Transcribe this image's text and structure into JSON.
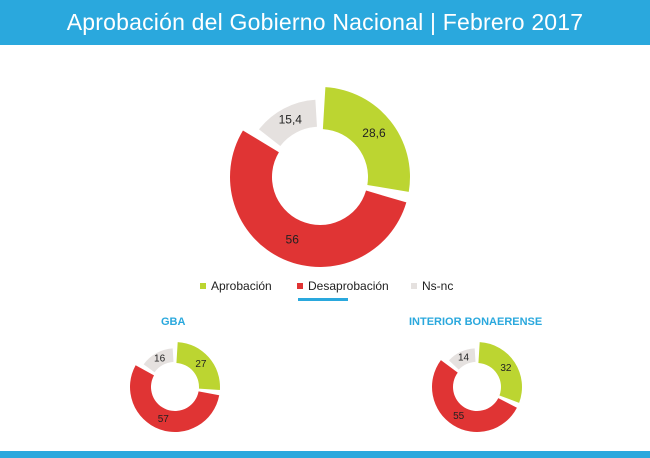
{
  "header": {
    "title": "Aprobación del Gobierno Nacional | Febrero 2017"
  },
  "colors": {
    "header": "#2aa8dd",
    "aprobacion": "#bcd531",
    "desaprobacion": "#e03434",
    "nsnc": "#e5e1df"
  },
  "legend": [
    {
      "label": "Aprobación",
      "color": "#bcd531"
    },
    {
      "label": "Desaprobación",
      "color": "#e03434"
    },
    {
      "label": "Ns-nc",
      "color": "#e5e1df"
    }
  ],
  "chart_data": [
    {
      "type": "pie",
      "title": "",
      "categories": [
        "Aprobación",
        "Desaprobación",
        "Ns-nc"
      ],
      "values": [
        28.6,
        56,
        15.4
      ],
      "labels": [
        "28,6",
        "56",
        "15,4"
      ]
    },
    {
      "type": "pie",
      "title": "GBA",
      "categories": [
        "Aprobación",
        "Desaprobación",
        "Ns-nc"
      ],
      "values": [
        27,
        57,
        16
      ],
      "labels": [
        "27",
        "57",
        "16"
      ]
    },
    {
      "type": "pie",
      "title": "INTERIOR BONAERENSE",
      "categories": [
        "Aprobación",
        "Desaprobación",
        "Ns-nc"
      ],
      "values": [
        32,
        55,
        14
      ],
      "labels": [
        "32",
        "55",
        "14"
      ]
    }
  ]
}
